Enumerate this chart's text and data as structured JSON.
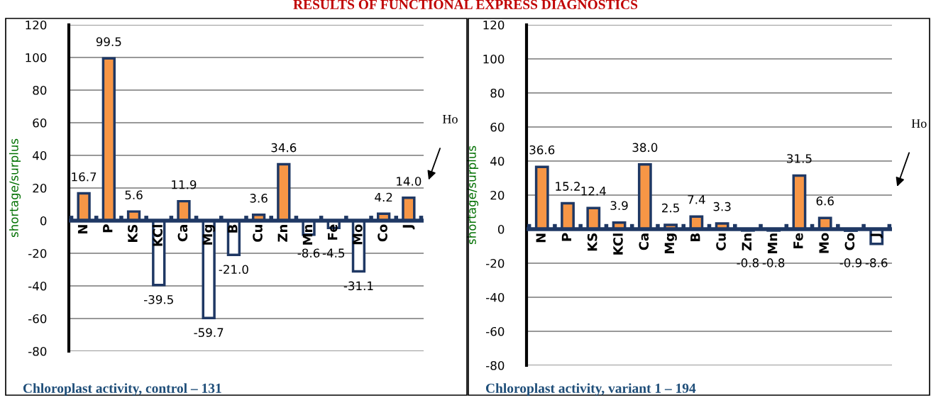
{
  "chart_data": [
    {
      "type": "bar",
      "title": "RESULTS OF FUNCTIONAL EXPRESS DIAGNOSTICS",
      "xlabel": "Chloroplast activity, control – 131",
      "ylabel": "shortage/surplus",
      "categories": [
        "N",
        "P",
        "KS",
        "KCl",
        "Ca",
        "Mg",
        "B",
        "Cu",
        "Zn",
        "Mn",
        "Fe",
        "Mo",
        "Co",
        "J"
      ],
      "values": [
        16.7,
        99.5,
        5.6,
        -39.5,
        11.9,
        -59.7,
        -21.0,
        3.6,
        34.6,
        -8.6,
        -4.5,
        -31.1,
        4.2,
        14.0
      ],
      "value_labels": [
        "16.7",
        "99.5",
        "5.6",
        "-39.5",
        "11.9",
        "-59.7",
        "-21.0",
        "3.6",
        "34.6",
        "-8.6",
        "-4.5",
        "-31.1",
        "4.2",
        "14.0"
      ],
      "colors": [
        "#f79646",
        "#f79646",
        "#f79646",
        "#ffffff",
        "#f79646",
        "#ffffff",
        "#ffffff",
        "#f79646",
        "#f79646",
        "#ffffff",
        "#ffffff",
        "#ffffff",
        "#f79646",
        "#f79646"
      ],
      "ylim": [
        -80,
        120
      ],
      "yticks": [
        -80,
        -60,
        -40,
        -20,
        0,
        20,
        40,
        60,
        80,
        100,
        120
      ],
      "grid": "y",
      "annotations": [
        "Ho"
      ]
    },
    {
      "type": "bar",
      "xlabel": "Chloroplast activity, variant 1 – 194",
      "ylabel": "shortage/surplus",
      "categories": [
        "N",
        "P",
        "KS",
        "KCl",
        "Ca",
        "Mg",
        "B",
        "Cu",
        "Zn",
        "Mn",
        "Fe",
        "Mo",
        "Co",
        "J"
      ],
      "values": [
        36.6,
        15.2,
        12.4,
        3.9,
        38.0,
        2.5,
        7.4,
        3.3,
        -0.8,
        -0.8,
        31.5,
        6.6,
        -0.9,
        -8.6
      ],
      "value_labels": [
        "36.6",
        "15.2",
        "12.4",
        "3.9",
        "38.0",
        "2.5",
        "7.4",
        "3.3",
        "-0.8",
        "-0.8",
        "31.5",
        "6.6",
        "-0.9",
        "-8.6"
      ],
      "colors": [
        "#f79646",
        "#f79646",
        "#f79646",
        "#f79646",
        "#f79646",
        "#f79646",
        "#f79646",
        "#f79646",
        "#ffffff",
        "#ffffff",
        "#f79646",
        "#f79646",
        "#ffffff",
        "#ffffff"
      ],
      "ylim": [
        -80,
        120
      ],
      "yticks": [
        -80,
        -60,
        -40,
        -20,
        0,
        20,
        40,
        60,
        80,
        100,
        120
      ],
      "grid": "y",
      "annotations": [
        "Ho"
      ]
    }
  ]
}
